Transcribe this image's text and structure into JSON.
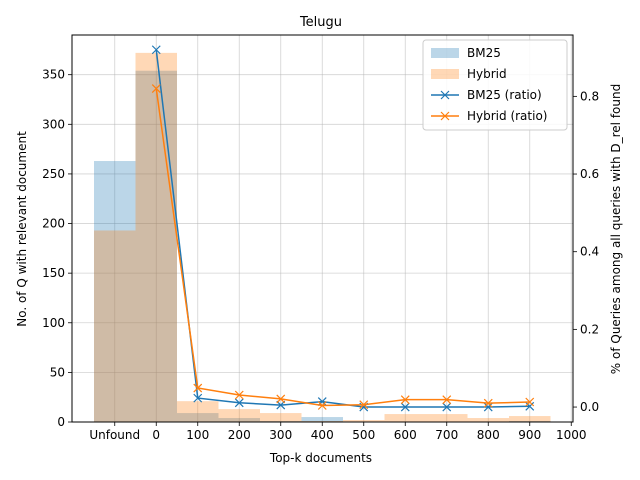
{
  "chart_data": {
    "type": "bar",
    "title": "Telugu",
    "xlabel": "Top-k documents",
    "ylabel": "No. of Q with relevant document",
    "y2label": "% of Queries among all queries with D_rel found",
    "categories": [
      "Unfound",
      "0-100",
      "100-200",
      "200-300",
      "300-400",
      "400-500",
      "500-600",
      "600-700",
      "700-800",
      "800-900",
      "900-1000"
    ],
    "x_tick_labels": [
      "Unfound",
      "0",
      "100",
      "200",
      "300",
      "400",
      "500",
      "600",
      "700",
      "800",
      "900",
      "1000"
    ],
    "ylim": [
      0,
      390
    ],
    "yticks": [
      0,
      50,
      100,
      150,
      200,
      250,
      300,
      350
    ],
    "y2lim": [
      -0.0385,
      0.958
    ],
    "y2ticks": [
      0.0,
      0.2,
      0.4,
      0.6,
      0.8
    ],
    "grid": true,
    "legend_position": "top-right",
    "series": [
      {
        "name": "BM25",
        "kind": "bar",
        "color": "#1f77b4",
        "opacity": 0.3,
        "values": [
          263,
          354,
          9,
          4,
          1,
          5,
          0,
          0,
          0,
          0,
          1
        ]
      },
      {
        "name": "Hybrid",
        "kind": "bar",
        "color": "#ff7f0e",
        "opacity": 0.3,
        "values": [
          193,
          372,
          21,
          13,
          9,
          1,
          2,
          8,
          8,
          4,
          6
        ]
      }
    ],
    "ratio_series": [
      {
        "name": "BM25 (ratio)",
        "kind": "line",
        "marker": "x",
        "color": "#1f77b4",
        "x": [
          50,
          150,
          250,
          350,
          450,
          550,
          650,
          750,
          850,
          950
        ],
        "values": [
          0.92,
          0.023,
          0.011,
          0.005,
          0.014,
          0.0,
          0.0,
          0.0,
          0.0,
          0.002
        ]
      },
      {
        "name": "Hybrid (ratio)",
        "kind": "line",
        "marker": "x",
        "color": "#ff7f0e",
        "x": [
          50,
          150,
          250,
          350,
          450,
          550,
          650,
          750,
          850,
          950
        ],
        "values": [
          0.82,
          0.049,
          0.031,
          0.021,
          0.004,
          0.006,
          0.019,
          0.019,
          0.01,
          0.013
        ]
      }
    ]
  }
}
